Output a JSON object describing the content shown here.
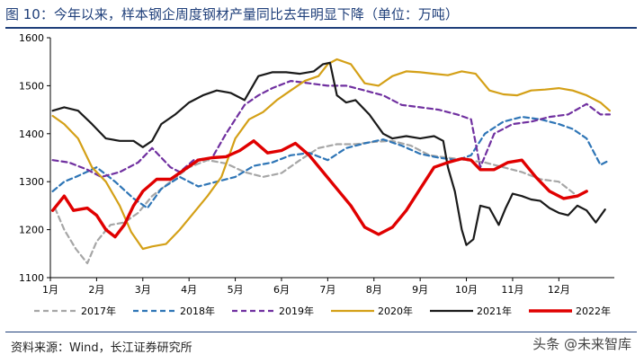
{
  "header": {
    "title": "图 10：今年以来，样本钢企周度钢材产量同比去年明显下降（单位：万吨）"
  },
  "footer": {
    "source": "资料来源：Wind，长江证券研究所",
    "watermark": "头条 @未来智库"
  },
  "chart_data": {
    "type": "line",
    "title": "",
    "xlabel": "",
    "ylabel": "",
    "ylim": [
      1100,
      1600
    ],
    "yticks": [
      1100,
      1200,
      1300,
      1400,
      1500,
      1600
    ],
    "xlim": [
      1,
      13.2
    ],
    "categories": [
      "1月",
      "2月",
      "3月",
      "4月",
      "5月",
      "6月",
      "7月",
      "8月",
      "9月",
      "10月",
      "11月",
      "12月"
    ],
    "grid": false,
    "legend": "bottom",
    "series": [
      {
        "name": "2017年",
        "color": "#a6a6a6",
        "dash": "dashed",
        "width": 2.2,
        "x": [
          1.1,
          1.3,
          1.55,
          1.8,
          2.0,
          2.3,
          2.6,
          2.9,
          3.2,
          3.6,
          4.0,
          4.4,
          4.8,
          5.2,
          5.6,
          6.0,
          6.4,
          6.8,
          7.2,
          7.6,
          8.0,
          8.4,
          8.8,
          9.2,
          9.6,
          10.0,
          10.4,
          10.8,
          11.2,
          11.6,
          12.0,
          12.4
        ],
        "y": [
          1245,
          1200,
          1160,
          1130,
          1175,
          1210,
          1215,
          1235,
          1270,
          1300,
          1330,
          1345,
          1338,
          1320,
          1310,
          1318,
          1345,
          1370,
          1378,
          1378,
          1383,
          1385,
          1375,
          1355,
          1350,
          1345,
          1340,
          1330,
          1320,
          1305,
          1300,
          1270
        ]
      },
      {
        "name": "2018年",
        "color": "#2e75b6",
        "dash": "dashed",
        "width": 2.2,
        "x": [
          1.05,
          1.3,
          1.6,
          2.0,
          2.4,
          2.8,
          3.1,
          3.4,
          3.8,
          4.2,
          4.6,
          5.0,
          5.4,
          5.8,
          6.2,
          6.6,
          7.0,
          7.4,
          7.8,
          8.2,
          8.6,
          9.0,
          9.4,
          9.8,
          10.1,
          10.4,
          10.8,
          11.2,
          11.6,
          12.0,
          12.3,
          12.6,
          12.9,
          13.1
        ],
        "y": [
          1280,
          1300,
          1312,
          1330,
          1300,
          1265,
          1245,
          1285,
          1310,
          1290,
          1300,
          1310,
          1333,
          1340,
          1355,
          1360,
          1345,
          1370,
          1380,
          1388,
          1375,
          1358,
          1350,
          1345,
          1355,
          1400,
          1425,
          1435,
          1430,
          1420,
          1410,
          1390,
          1335,
          1345
        ]
      },
      {
        "name": "2019年",
        "color": "#7030a0",
        "dash": "dashed",
        "width": 2.2,
        "x": [
          1.05,
          1.4,
          1.8,
          2.1,
          2.5,
          2.9,
          3.2,
          3.6,
          3.8,
          4.1,
          4.5,
          4.8,
          5.2,
          5.5,
          5.8,
          6.2,
          6.6,
          7.0,
          7.4,
          7.8,
          8.2,
          8.6,
          9.0,
          9.4,
          9.8,
          10.1,
          10.3,
          10.6,
          11.0,
          11.4,
          11.8,
          12.2,
          12.6,
          12.9,
          13.1
        ],
        "y": [
          1345,
          1340,
          1325,
          1310,
          1320,
          1340,
          1370,
          1330,
          1320,
          1345,
          1350,
          1400,
          1460,
          1480,
          1495,
          1510,
          1505,
          1500,
          1500,
          1490,
          1480,
          1460,
          1455,
          1450,
          1440,
          1430,
          1330,
          1400,
          1420,
          1425,
          1435,
          1440,
          1462,
          1440,
          1440
        ]
      },
      {
        "name": "2020年",
        "color": "#d4a017",
        "dash": "solid",
        "width": 2.2,
        "x": [
          1.05,
          1.3,
          1.6,
          1.9,
          2.2,
          2.5,
          2.75,
          3.0,
          3.2,
          3.5,
          3.8,
          4.1,
          4.4,
          4.7,
          5.0,
          5.3,
          5.6,
          5.9,
          6.2,
          6.5,
          6.8,
          7.0,
          7.2,
          7.5,
          7.8,
          8.1,
          8.4,
          8.7,
          9.0,
          9.3,
          9.6,
          9.9,
          10.2,
          10.5,
          10.8,
          11.1,
          11.4,
          11.7,
          12.0,
          12.3,
          12.6,
          12.9,
          13.1
        ],
        "y": [
          1437,
          1420,
          1390,
          1330,
          1300,
          1250,
          1195,
          1160,
          1165,
          1170,
          1200,
          1235,
          1270,
          1310,
          1390,
          1430,
          1445,
          1470,
          1490,
          1510,
          1520,
          1545,
          1555,
          1545,
          1505,
          1500,
          1520,
          1530,
          1528,
          1525,
          1522,
          1530,
          1525,
          1490,
          1482,
          1480,
          1490,
          1492,
          1495,
          1490,
          1480,
          1465,
          1448
        ]
      },
      {
        "name": "2021年",
        "color": "#1a1a1a",
        "dash": "solid",
        "width": 2.2,
        "x": [
          1.05,
          1.3,
          1.6,
          1.9,
          2.2,
          2.5,
          2.8,
          3.0,
          3.2,
          3.4,
          3.7,
          4.0,
          4.3,
          4.6,
          4.9,
          5.2,
          5.5,
          5.8,
          6.1,
          6.4,
          6.7,
          6.9,
          7.05,
          7.2,
          7.4,
          7.6,
          7.9,
          8.2,
          8.4,
          8.7,
          9.0,
          9.3,
          9.5,
          9.6,
          9.75,
          9.9,
          10.0,
          10.15,
          10.3,
          10.5,
          10.7,
          10.85,
          11.0,
          11.2,
          11.4,
          11.6,
          11.8,
          12.0,
          12.2,
          12.4,
          12.6,
          12.8,
          13.0
        ],
        "y": [
          1448,
          1455,
          1448,
          1420,
          1390,
          1385,
          1385,
          1372,
          1385,
          1420,
          1440,
          1465,
          1480,
          1490,
          1485,
          1470,
          1520,
          1528,
          1528,
          1525,
          1530,
          1545,
          1548,
          1480,
          1465,
          1470,
          1440,
          1400,
          1390,
          1395,
          1390,
          1395,
          1385,
          1330,
          1280,
          1200,
          1168,
          1180,
          1250,
          1245,
          1210,
          1245,
          1275,
          1270,
          1263,
          1260,
          1245,
          1235,
          1230,
          1250,
          1240,
          1215,
          1242
        ]
      },
      {
        "name": "2022年",
        "color": "#e00000",
        "dash": "solid",
        "width": 3.4,
        "x": [
          1.05,
          1.3,
          1.5,
          1.8,
          2.0,
          2.2,
          2.4,
          2.6,
          2.8,
          3.0,
          3.3,
          3.6,
          3.9,
          4.2,
          4.5,
          4.8,
          5.1,
          5.4,
          5.7,
          6.0,
          6.3,
          6.6,
          6.9,
          7.2,
          7.5,
          7.8,
          8.1,
          8.4,
          8.7,
          9.0,
          9.3,
          9.6,
          9.9,
          10.1,
          10.3,
          10.6,
          10.9,
          11.2,
          11.5,
          11.8,
          12.1,
          12.4,
          12.6
        ],
        "y": [
          1240,
          1270,
          1240,
          1245,
          1230,
          1200,
          1185,
          1210,
          1250,
          1280,
          1305,
          1305,
          1325,
          1345,
          1350,
          1352,
          1365,
          1385,
          1360,
          1365,
          1380,
          1355,
          1320,
          1285,
          1250,
          1205,
          1190,
          1205,
          1240,
          1285,
          1330,
          1340,
          1348,
          1345,
          1325,
          1325,
          1340,
          1345,
          1310,
          1280,
          1265,
          1270,
          1280
        ]
      }
    ]
  }
}
